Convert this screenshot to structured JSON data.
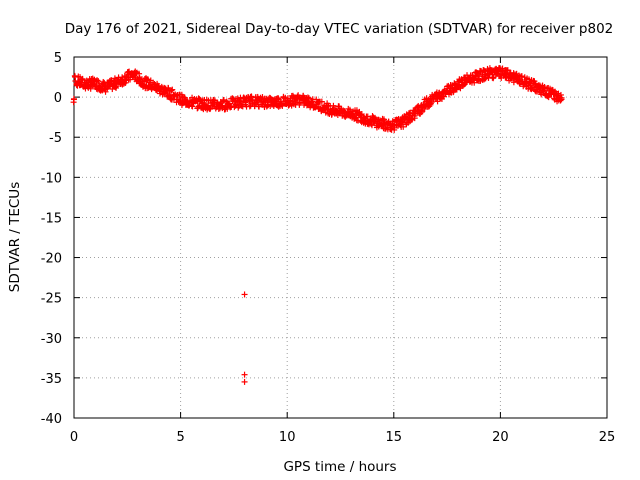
{
  "chart_data": {
    "type": "scatter",
    "title": "Day 176 of 2021, Sidereal Day-to-day VTEC variation (SDTVAR) for receiver p802",
    "xlabel": "GPS time / hours",
    "ylabel": "SDTVAR / TECUs",
    "xlim": [
      0,
      25
    ],
    "ylim": [
      -40,
      5
    ],
    "x_ticks": [
      0,
      5,
      10,
      15,
      20,
      25
    ],
    "y_ticks": [
      5,
      0,
      -5,
      -10,
      -15,
      -20,
      -25,
      -30,
      -35,
      -40
    ],
    "grid": true,
    "marker": "plus",
    "color": "#ff0000",
    "series": [
      {
        "name": "SDTVAR",
        "trend": [
          [
            0.0,
            2.2
          ],
          [
            0.5,
            1.6
          ],
          [
            1.0,
            1.7
          ],
          [
            1.5,
            1.2
          ],
          [
            2.0,
            1.8
          ],
          [
            2.5,
            2.5
          ],
          [
            2.8,
            2.8
          ],
          [
            3.3,
            1.8
          ],
          [
            3.8,
            1.3
          ],
          [
            4.2,
            0.8
          ],
          [
            4.6,
            0.3
          ],
          [
            5.0,
            -0.3
          ],
          [
            5.6,
            -0.7
          ],
          [
            6.2,
            -0.9
          ],
          [
            6.8,
            -1.0
          ],
          [
            7.4,
            -0.8
          ],
          [
            7.9,
            -0.6
          ],
          [
            8.4,
            -0.5
          ],
          [
            8.9,
            -0.6
          ],
          [
            9.4,
            -0.6
          ],
          [
            10.0,
            -0.5
          ],
          [
            10.5,
            -0.3
          ],
          [
            11.0,
            -0.6
          ],
          [
            11.5,
            -1.0
          ],
          [
            12.0,
            -1.5
          ],
          [
            12.6,
            -1.9
          ],
          [
            13.2,
            -2.2
          ],
          [
            13.8,
            -2.8
          ],
          [
            14.4,
            -3.3
          ],
          [
            15.0,
            -3.5
          ],
          [
            15.5,
            -3.0
          ],
          [
            16.0,
            -2.0
          ],
          [
            16.5,
            -0.8
          ],
          [
            17.0,
            0.0
          ],
          [
            17.5,
            0.8
          ],
          [
            18.0,
            1.6
          ],
          [
            18.5,
            2.2
          ],
          [
            19.0,
            2.6
          ],
          [
            19.5,
            3.0
          ],
          [
            20.0,
            3.0
          ],
          [
            20.5,
            2.6
          ],
          [
            21.0,
            2.0
          ],
          [
            21.5,
            1.5
          ],
          [
            22.0,
            0.8
          ],
          [
            22.5,
            0.3
          ],
          [
            22.9,
            -0.3
          ]
        ],
        "outliers": [
          [
            8.0,
            -24.6
          ],
          [
            8.0,
            -34.6
          ],
          [
            8.0,
            -35.5
          ]
        ]
      }
    ]
  }
}
